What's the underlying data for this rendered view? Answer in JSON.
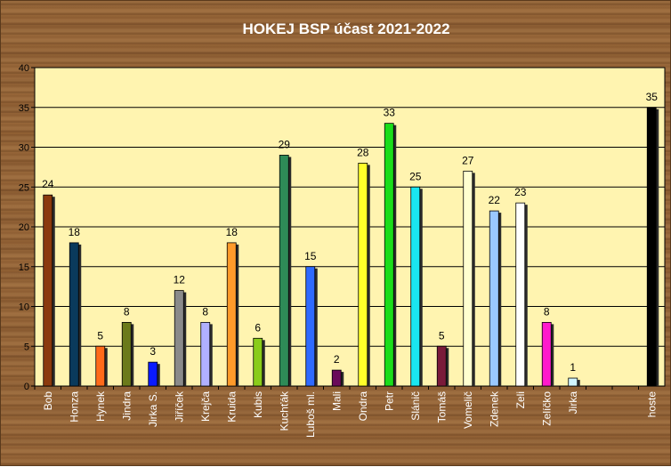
{
  "chart_data": {
    "type": "bar",
    "title": "HOKEJ BSP účast 2021-2022",
    "categories": [
      "Bob",
      "Honza",
      "Hynek",
      "Jindra",
      "Jirka S.",
      "Jiříček",
      "Krejča",
      "Kruida",
      "Kubis",
      "Kuchťák",
      "Luboš ml.",
      "Mali",
      "Ondra",
      "Petr",
      "Slánič",
      "Tomáš",
      "Vomelič",
      "Zdenek",
      "Zeli",
      "Zelíčko",
      "Jirka",
      "",
      "",
      "hoste"
    ],
    "values": [
      24,
      18,
      5,
      8,
      3,
      12,
      8,
      18,
      6,
      29,
      15,
      2,
      28,
      33,
      25,
      5,
      27,
      22,
      23,
      8,
      1,
      null,
      null,
      35
    ],
    "colors": [
      "#8B3A0E",
      "#0A3A5C",
      "#FF6A1A",
      "#6B7A1A",
      "#0A1AFF",
      "#8A8A8A",
      "#B0B0FF",
      "#FF9A2A",
      "#8ACC1A",
      "#2E8B57",
      "#2E6AFF",
      "#6A0A5A",
      "#FFFF2A",
      "#1ADD1A",
      "#1AE6F0",
      "#7A1A3A",
      "#FFFFD0",
      "#9AC8FF",
      "#FFFFFF",
      "#FF1ACC",
      "#D0F4FF",
      "#000000",
      "#000000",
      "#000000"
    ],
    "ylim": [
      0,
      40
    ],
    "yticks": [
      0,
      5,
      10,
      15,
      20,
      25,
      30,
      35,
      40
    ],
    "grid": true,
    "legend": "none",
    "plot_background": "#FFF4B0"
  }
}
